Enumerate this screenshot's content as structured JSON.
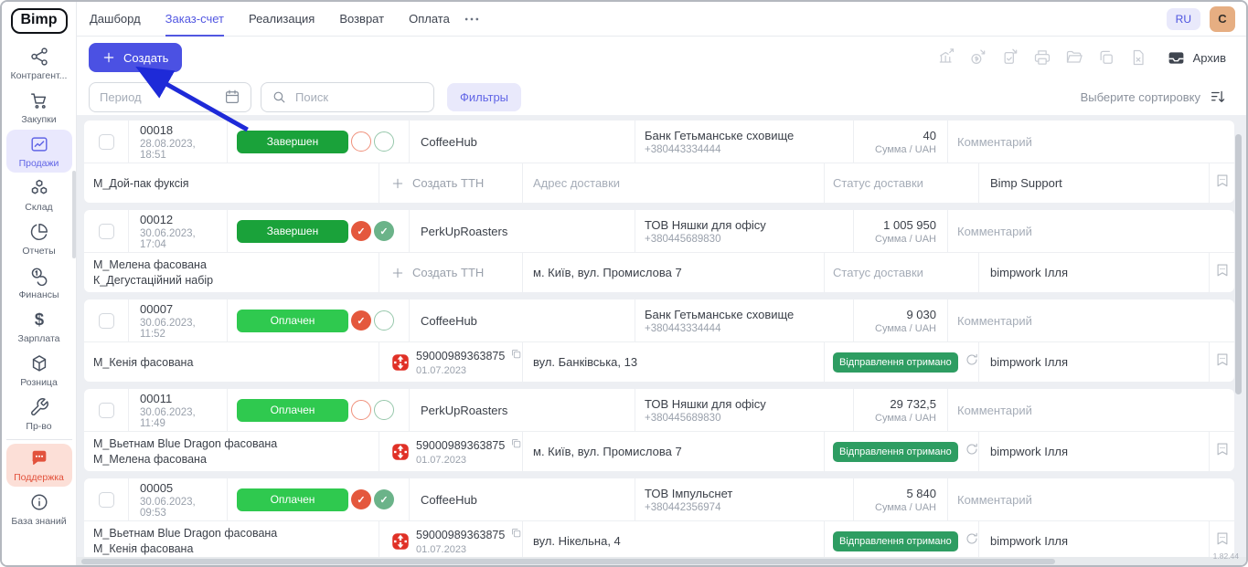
{
  "app": {
    "logo": "Bimp",
    "version": "1.82.44"
  },
  "topnav": {
    "tabs": [
      {
        "label": "Дашборд",
        "active": false
      },
      {
        "label": "Заказ-счет",
        "active": true
      },
      {
        "label": "Реализация",
        "active": false
      },
      {
        "label": "Возврат",
        "active": false
      },
      {
        "label": "Оплата",
        "active": false
      }
    ],
    "lang": "RU",
    "avatar": "C"
  },
  "sidebar": {
    "items": [
      {
        "label": "Контрагент...",
        "icon": "nodes-icon"
      },
      {
        "label": "Закупки",
        "icon": "cart-icon"
      },
      {
        "label": "Продажи",
        "icon": "chart-icon",
        "active": true
      },
      {
        "label": "Склад",
        "icon": "boxes-icon"
      },
      {
        "label": "Отчеты",
        "icon": "pie-chart-icon"
      },
      {
        "label": "Финансы",
        "icon": "coins-icon"
      },
      {
        "label": "Зарплата",
        "icon": "dollar-icon"
      },
      {
        "label": "Розница",
        "icon": "cube-icon"
      },
      {
        "label": "Пр-во",
        "icon": "wrench-icon"
      },
      {
        "label": "Поддержка",
        "icon": "chat-icon",
        "variant": "support"
      },
      {
        "label": "База знаний",
        "icon": "info-icon"
      }
    ]
  },
  "toolbar": {
    "create_label": "Создать",
    "archive_label": "Архив",
    "disabled_icons": [
      "bank-export-icon",
      "payment-in-icon",
      "document-accept-icon",
      "print-icon",
      "open-folder-icon",
      "copy-icon",
      "export-file-icon"
    ]
  },
  "filters": {
    "period_placeholder": "Период",
    "search_placeholder": "Поиск",
    "filters_label": "Фильтры",
    "sort_label": "Выберите сортировку"
  },
  "table": {
    "sum_caption": "Сумма / UAH",
    "comment_placeholder": "Комментарий",
    "create_ttn_label": "Создать ТТН",
    "address_placeholder": "Адрес доставки",
    "delivery_placeholder": "Статус доставки",
    "delivery_received_label": "Відправлення отримано",
    "rows": [
      {
        "number": "00018",
        "datetime": "28.08.2023, 18:51",
        "status_label": "Завершен",
        "status_variant": "completed",
        "payment_check": false,
        "receipt_check": false,
        "client": "CoffeeHub",
        "payer_name": "Банк Гетьманське сховище",
        "payer_phone": "+380443334444",
        "sum": "40",
        "products": [
          "М_Дой-пак фуксія"
        ],
        "ttn_number": null,
        "ttn_date": null,
        "address": null,
        "delivery_received": false,
        "manager": "Bimp Support"
      },
      {
        "number": "00012",
        "datetime": "30.06.2023, 17:04",
        "status_label": "Завершен",
        "status_variant": "completed",
        "payment_check": true,
        "receipt_check": true,
        "client": "PerkUpRoasters",
        "payer_name": "ТОВ Няшки для офісу",
        "payer_phone": "+380445689830",
        "sum": "1 005 950",
        "products": [
          "М_Мелена фасована",
          "К_Дегустаційний набір"
        ],
        "ttn_number": null,
        "ttn_date": null,
        "address": "м. Київ, вул. Промислова 7",
        "delivery_received": false,
        "manager": "bimpwork Ілля"
      },
      {
        "number": "00007",
        "datetime": "30.06.2023, 11:52",
        "status_label": "Оплачен",
        "status_variant": "paid",
        "payment_check": true,
        "receipt_check": false,
        "client": "CoffeeHub",
        "payer_name": "Банк Гетьманське сховище",
        "payer_phone": "+380443334444",
        "sum": "9 030",
        "products": [
          "М_Кенія фасована"
        ],
        "ttn_number": "59000989363875",
        "ttn_date": "01.07.2023",
        "address": "вул. Банківська, 13",
        "delivery_received": true,
        "manager": "bimpwork Ілля"
      },
      {
        "number": "00011",
        "datetime": "30.06.2023, 11:49",
        "status_label": "Оплачен",
        "status_variant": "paid",
        "payment_check": false,
        "receipt_check": false,
        "client": "PerkUpRoasters",
        "payer_name": "ТОВ Няшки для офісу",
        "payer_phone": "+380445689830",
        "sum": "29 732,5",
        "products": [
          "М_Вьетнам Blue Dragon фасована",
          "М_Мелена фасована"
        ],
        "ttn_number": "59000989363875",
        "ttn_date": "01.07.2023",
        "address": "м. Київ, вул. Промислова 7",
        "delivery_received": true,
        "manager": "bimpwork Ілля"
      },
      {
        "number": "00005",
        "datetime": "30.06.2023, 09:53",
        "status_label": "Оплачен",
        "status_variant": "paid",
        "payment_check": true,
        "receipt_check": true,
        "client": "CoffeeHub",
        "payer_name": "ТОВ Імпульснет",
        "payer_phone": "+380442356974",
        "sum": "5 840",
        "products": [
          "М_Вьетнам Blue Dragon фасована",
          "М_Кенія фасована"
        ],
        "ttn_number": "59000989363875",
        "ttn_date": "01.07.2023",
        "address": "вул. Нікельна, 4",
        "delivery_received": true,
        "manager": "bimpwork Ілля"
      }
    ]
  },
  "colors": {
    "accent": "#4b51e3",
    "status_completed": "#1aa23a",
    "status_paid": "#2fc94f",
    "delivery_badge": "#2e9d62",
    "support_red": "#e2523c",
    "nova_poshta_red": "#e03127"
  }
}
